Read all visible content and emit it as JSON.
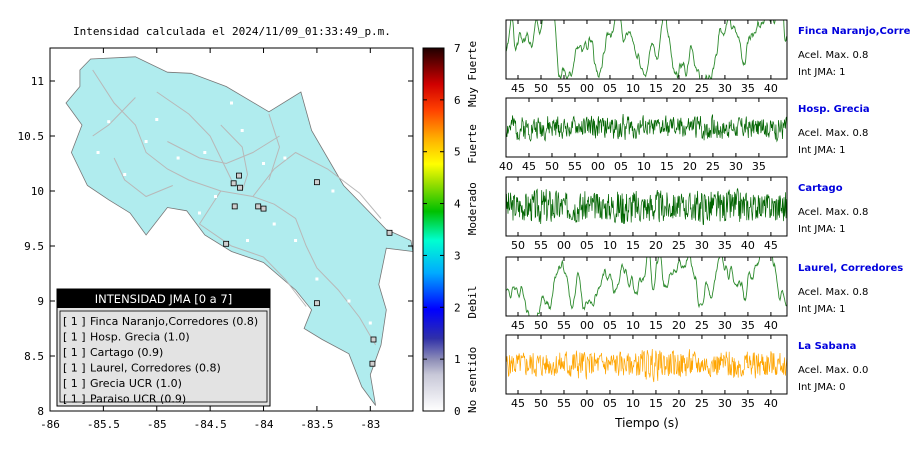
{
  "chart_data": [
    {
      "type": "map",
      "title": "Intensidad calculada el 2024/11/09_01:33:49_p.m.",
      "xlim": [
        -86,
        -82.6
      ],
      "ylim": [
        8,
        11.3
      ],
      "x_ticks": [
        -86,
        -85.5,
        -85,
        -84.5,
        -84,
        -83.5,
        -83
      ],
      "y_ticks": [
        8,
        8.5,
        9,
        9.5,
        10,
        10.5,
        11
      ],
      "colorbar": {
        "range": [
          0,
          7
        ],
        "ticks": [
          0,
          1,
          2,
          3,
          4,
          5,
          6,
          7
        ],
        "labels": [
          {
            "text": "No sentido",
            "value": 0.6
          },
          {
            "text": "Debil",
            "value": 2.1
          },
          {
            "text": "Moderado",
            "value": 3.9
          },
          {
            "text": "Fuerte",
            "value": 5.15
          },
          {
            "text": "Muy Fuerte",
            "value": 6.5
          }
        ]
      },
      "legend": {
        "title": "INTENSIDAD JMA [0 a 7]",
        "items": [
          {
            "level": "[ 1 ]",
            "name": "Finca Naranjo,Corredores (0.8)"
          },
          {
            "level": "[ 1 ]",
            "name": "Hosp. Grecia (1.0)"
          },
          {
            "level": "[ 1 ]",
            "name": "Cartago (0.9)"
          },
          {
            "level": "[ 1 ]",
            "name": "Laurel, Corredores (0.8)"
          },
          {
            "level": "[ 1 ]",
            "name": "Grecia UCR (1.0)"
          },
          {
            "level": "[ 1 ]",
            "name": "Paraiso UCR (0.9)"
          }
        ]
      },
      "stations": [
        {
          "lon": -84.28,
          "lat": 10.07
        },
        {
          "lon": -84.23,
          "lat": 10.14
        },
        {
          "lon": -84.27,
          "lat": 9.86
        },
        {
          "lon": -84.22,
          "lat": 10.03
        },
        {
          "lon": -84.05,
          "lat": 9.86
        },
        {
          "lon": -84.0,
          "lat": 9.84
        },
        {
          "lon": -83.5,
          "lat": 10.08
        },
        {
          "lon": -84.35,
          "lat": 9.52
        },
        {
          "lon": -83.5,
          "lat": 8.98
        },
        {
          "lon": -82.97,
          "lat": 8.65
        },
        {
          "lon": -82.82,
          "lat": 9.62
        },
        {
          "lon": -82.98,
          "lat": 8.43
        }
      ],
      "colors": {
        "land": "#b0ecee",
        "road": "#b8b8b8",
        "coast": "#777777"
      }
    },
    {
      "type": "line",
      "xlabel": "Tiempo (s)",
      "panels": [
        {
          "name": "Finca Naranjo,Corredores",
          "accel": "Acel. Max. 0.8",
          "int": "Int JMA: 1",
          "ticks": [
            "45",
            "50",
            "55",
            "00",
            "05",
            "10",
            "15",
            "20",
            "25",
            "30",
            "35",
            "40"
          ],
          "color": "#2e8b2e",
          "seed": 1,
          "smooth": 0.7,
          "amp": 0.75
        },
        {
          "name": "Hosp. Grecia",
          "accel": "Acel. Max. 0.8",
          "int": "Int JMA: 1",
          "ticks": [
            "40",
            "45",
            "50",
            "55",
            "00",
            "05",
            "10",
            "15",
            "20",
            "25",
            "30",
            "35"
          ],
          "color": "#006400",
          "seed": 2,
          "smooth": 0.3,
          "amp": 0.55
        },
        {
          "name": "Cartago",
          "accel": "Acel. Max. 0.8",
          "int": "Int JMA: 1",
          "ticks": [
            "50",
            "55",
            "00",
            "05",
            "10",
            "15",
            "20",
            "25",
            "30",
            "35",
            "40",
            "45"
          ],
          "color": "#006400",
          "seed": 3,
          "smooth": 0.1,
          "amp": 0.65
        },
        {
          "name": "Laurel, Corredores",
          "accel": "Acel. Max. 0.8",
          "int": "Int JMA: 1",
          "ticks": [
            "45",
            "50",
            "55",
            "00",
            "05",
            "10",
            "15",
            "20",
            "25",
            "30",
            "35",
            "40"
          ],
          "color": "#2e8b2e",
          "seed": 4,
          "smooth": 0.7,
          "amp": 0.7
        },
        {
          "name": "La Sabana",
          "accel": "Acel. Max. 0.0",
          "int": "Int JMA: 0",
          "ticks": [
            "45",
            "50",
            "55",
            "00",
            "05",
            "10",
            "15",
            "20",
            "25",
            "30",
            "35",
            "40"
          ],
          "color": "#ffa500",
          "seed": 5,
          "smooth": 0.2,
          "amp": 0.6
        }
      ]
    }
  ]
}
